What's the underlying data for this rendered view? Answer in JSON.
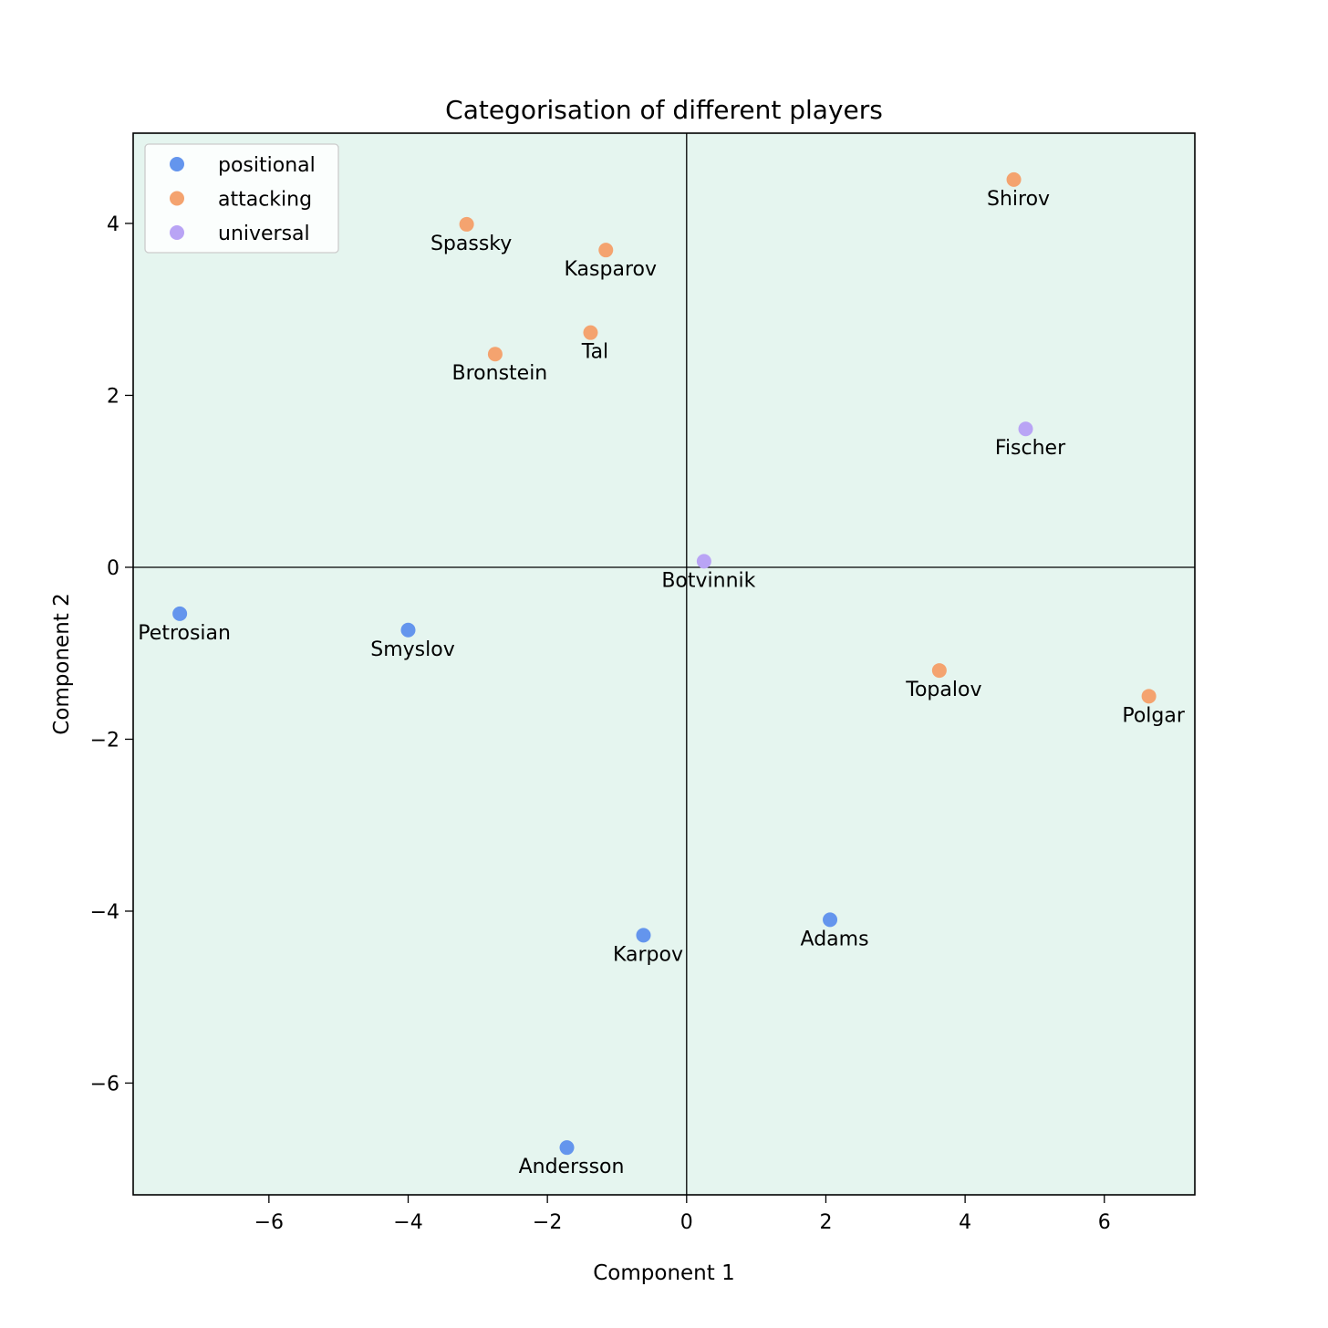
{
  "chart_data": {
    "type": "scatter",
    "title": "Categorisation of different players",
    "xlabel": "Component 1",
    "ylabel": "Component 2",
    "xlim": [
      -7.95,
      7.3
    ],
    "ylim": [
      -7.3,
      5.05
    ],
    "xticks": [
      -6,
      -4,
      -2,
      0,
      2,
      4,
      6
    ],
    "yticks": [
      -6,
      -4,
      -2,
      0,
      2,
      4
    ],
    "xtick_labels": [
      "−6",
      "−4",
      "−2",
      "0",
      "2",
      "4",
      "6"
    ],
    "ytick_labels": [
      "−6",
      "−4",
      "−2",
      "0",
      "2",
      "4"
    ],
    "grid": false,
    "background_color": "#e5f5ef",
    "reference_lines": {
      "x": 0,
      "y": 0
    },
    "legend_position": "upper left",
    "series": [
      {
        "name": "positional",
        "color": "#6495ed",
        "points": [
          {
            "label": "Petrosian",
            "x": -7.28,
            "y": -0.54
          },
          {
            "label": "Smyslov",
            "x": -4.0,
            "y": -0.73
          },
          {
            "label": "Karpov",
            "x": -0.62,
            "y": -4.28
          },
          {
            "label": "Adams",
            "x": 2.06,
            "y": -4.1
          },
          {
            "label": "Andersson",
            "x": -1.72,
            "y": -6.75
          }
        ]
      },
      {
        "name": "attacking",
        "color": "#f4a36f",
        "points": [
          {
            "label": "Spassky",
            "x": -3.16,
            "y": 3.99
          },
          {
            "label": "Kasparov",
            "x": -1.16,
            "y": 3.69
          },
          {
            "label": "Tal",
            "x": -1.38,
            "y": 2.73
          },
          {
            "label": "Bronstein",
            "x": -2.75,
            "y": 2.48
          },
          {
            "label": "Shirov",
            "x": 4.7,
            "y": 4.51
          },
          {
            "label": "Topalov",
            "x": 3.63,
            "y": -1.2
          },
          {
            "label": "Polgar",
            "x": 6.64,
            "y": -1.5
          }
        ]
      },
      {
        "name": "universal",
        "color": "#b9a4f5",
        "points": [
          {
            "label": "Fischer",
            "x": 4.87,
            "y": 1.61
          },
          {
            "label": "Botvinnik",
            "x": 0.25,
            "y": 0.07
          }
        ]
      }
    ]
  }
}
